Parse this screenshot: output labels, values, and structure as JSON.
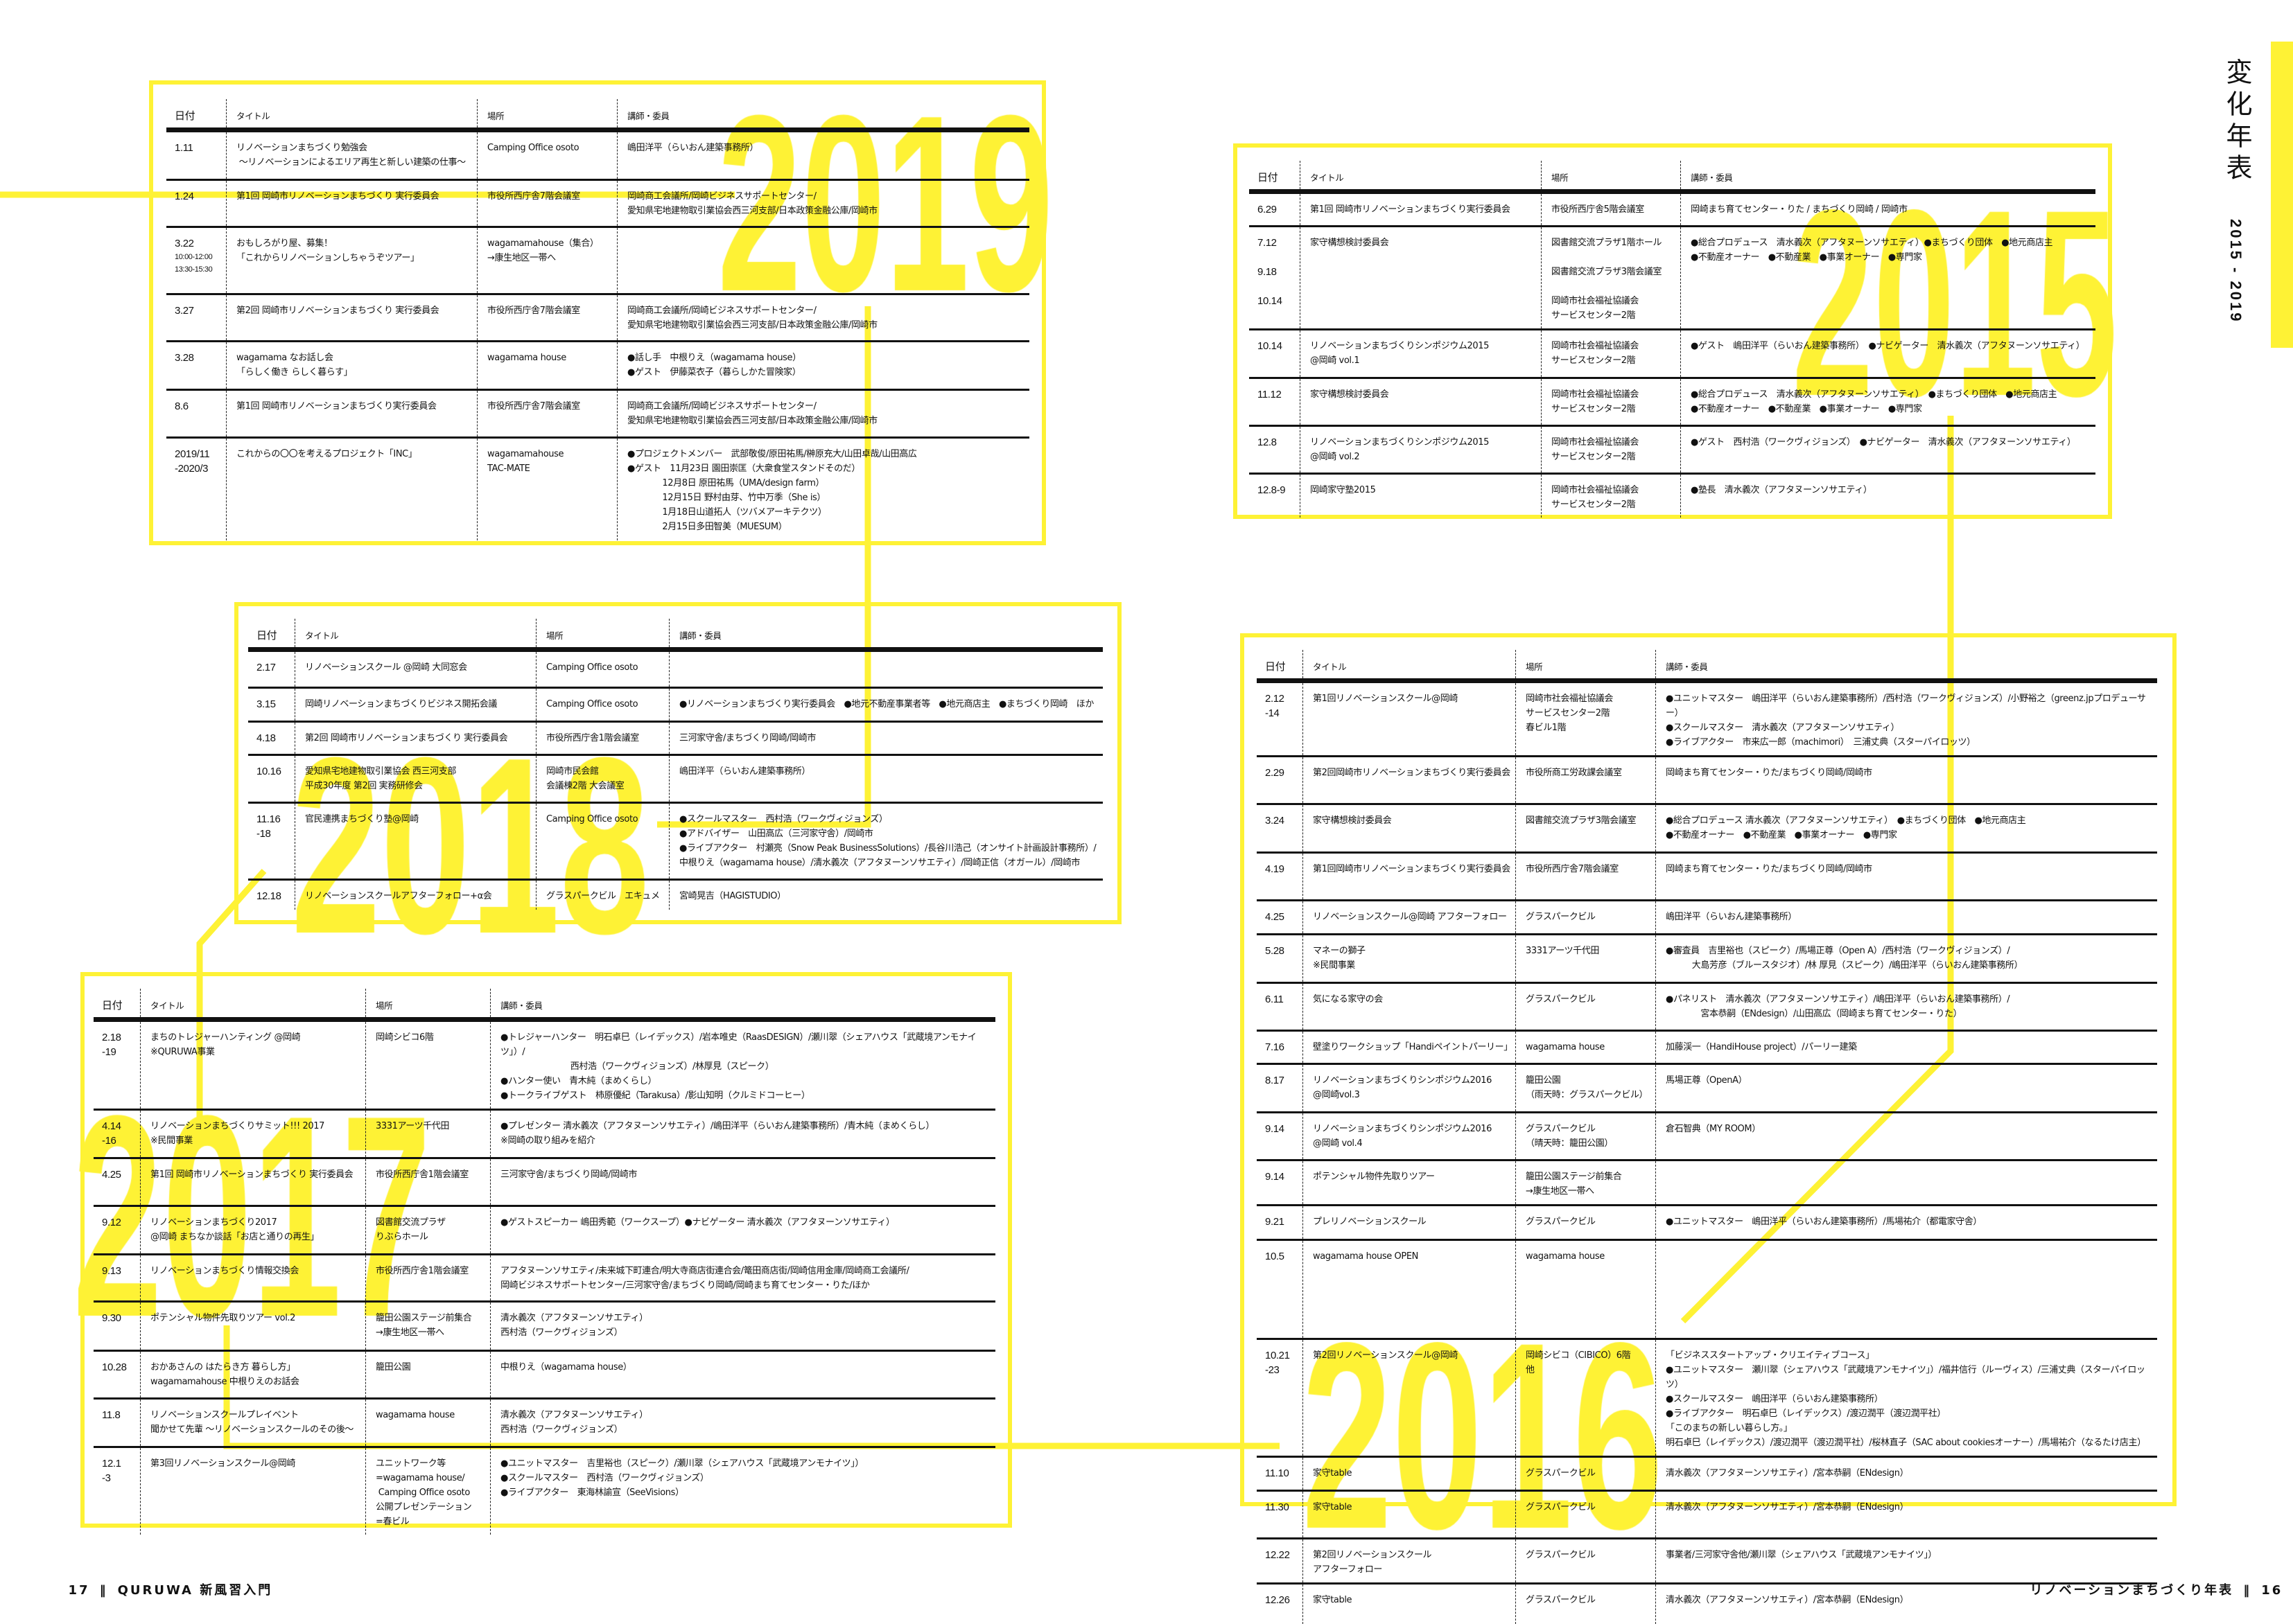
{
  "colors": {
    "accent": "#fef235",
    "text": "#111111"
  },
  "side_title": {
    "title": "変化年表",
    "years": "2015 - 2019"
  },
  "footer": {
    "left_page": "17",
    "left_sep": "‖",
    "left_title": "QURUWA 新風習入門",
    "right_title": "リノベーションまちづくり年表",
    "right_sep": "‖",
    "right_page": "16"
  },
  "headers": {
    "date": "日付",
    "title": "タイトル",
    "place": "場所",
    "people": "講師・委員"
  },
  "tables": {
    "y2019": {
      "year": "2019",
      "rows": [
        {
          "date": "1.11",
          "title": "リノベーションまちづくり勉強会\n 〜リノベーションによるエリア再生と新しい建築の仕事〜",
          "place": "Camping Office osoto",
          "people": "嶋田洋平（らいおん建築事務所）"
        },
        {
          "date": "1.24",
          "title": "第1回 岡崎市リノベーションまちづくり 実行委員会",
          "place": "市役所西庁舎7階会議室",
          "people": "岡崎商工会議所/岡崎ビジネスサポートセンター/\n愛知県宅地建物取引業協会西三河支部/日本政策金融公庫/岡崎市"
        },
        {
          "date": "3.22",
          "date_sub": "10:00-12:00\n13:30-15:30",
          "title": "おもしろがり屋、募集！\n「これからリノベーションしちゃうぞツアー」",
          "place": "wagamamahouse（集合）\n→康生地区一帯へ",
          "people": ""
        },
        {
          "date": "3.27",
          "title": "第2回 岡崎市リノベーションまちづくり 実行委員会",
          "place": "市役所西庁舎7階会議室",
          "people": "岡崎商工会議所/岡崎ビジネスサポートセンター/\n愛知県宅地建物取引業協会西三河支部/日本政策金融公庫/岡崎市"
        },
        {
          "date": "3.28",
          "title": "wagamama なお話し会\n「らしく働き らしく暮らす」",
          "place": "wagamama house",
          "people": "●話し手　中根りえ（wagamama house）\n●ゲスト　伊藤菜衣子（暮らしかた冒険家）"
        },
        {
          "date": "8.6",
          "title": "第1回 岡崎市リノベーションまちづくり実行委員会",
          "place": "市役所西庁舎7階会議室",
          "people": "岡崎商工会議所/岡崎ビジネスサポートセンター/\n愛知県宅地建物取引業協会西三河支部/日本政策金融公庫/岡崎市"
        },
        {
          "date": "2019/11\n-2020/3",
          "title": "これからの〇〇を考えるプロジェクト「INC」",
          "place": "wagamamahouse\nTAC-MATE",
          "people": "●プロジェクトメンバー　武部敬俊/原田祐馬/榊原充大/山田卓哉/山田高広\n●ゲスト　11月23日 園田崇匡（大衆食堂スタンドそのだ）\n　　　　12月8日 原田祐馬（UMA/design farm）\n　　　　12月15日 野村由芽、竹中万季（She is）\n　　　　1月18日山道拓人（ツバメアーキテクツ）\n　　　　2月15日多田智美（MUESUM）"
        }
      ]
    },
    "y2018": {
      "year": "2018",
      "rows": [
        {
          "date": "2.17",
          "title": "リノベーションスクール @岡崎 大同窓会",
          "place": "Camping Office osoto",
          "people": ""
        },
        {
          "date": "3.15",
          "title": "岡崎リノベーションまちづくりビジネス開拓会議",
          "place": "Camping Office osoto",
          "people": "●リノベーションまちづくり実行委員会　●地元不動産事業者等　●地元商店主　●まちづくり岡崎　ほか"
        },
        {
          "date": "4.18",
          "title": "第2回 岡崎市リノベーションまちづくり 実行委員会",
          "place": "市役所西庁舎1階会議室",
          "people": "三河家守舎/まちづくり岡崎/岡崎市"
        },
        {
          "date": "10.16",
          "title": "愛知県宅地建物取引業協会 西三河支部\n平成30年度 第2回 実務研修会",
          "place": "岡崎市民会館\n会議棟2階 大会議室",
          "people": "嶋田洋平（らいおん建築事務所）"
        },
        {
          "date": "11.16\n-18",
          "title": "官民連携まちづくり塾@岡崎",
          "place": "Camping Office osoto",
          "people": "●スクールマスター　西村浩（ワークヴィジョンズ）\n●アドバイザー　山田高広（三河家守舎）/岡崎市\n●ライブアクター　村瀬亮（Snow Peak BusinessSolutions）/長谷川浩己（オンサイト計画設計事務所）/\n中根りえ（wagamama house）/清水義次（アフタヌーンソサエティ）/岡崎正信（オガール）/岡崎市"
        },
        {
          "date": "12.18",
          "title": "リノベーションスクールアフターフォロー+α会",
          "place": "グラスパークビル　エキュメ",
          "people": "宮崎晃吉（HAGISTUDIO）"
        }
      ]
    },
    "y2017": {
      "year": "2017",
      "rows": [
        {
          "date": "2.18\n-19",
          "title": "まちのトレジャーハンティング @岡崎\n※QURUWA事業",
          "place": "岡崎シビコ6階",
          "people": "●トレジャーハンター　明石卓巳（レイデックス）/岩本唯史（RaasDESIGN）/瀬川翠（シェアハウス「武蔵境アンモナイツ」）/\n　　　　　　　　西村浩（ワークヴィジョンズ）/林厚見（スピーク）\n●ハンター使い　青木純（まめくらし）\n●トークライブゲスト　柿原優紀（Tarakusa）/影山知明（クルミドコーヒー）"
        },
        {
          "date": "4.14\n-16",
          "title": "リノベーションまちづくりサミット!!! 2017\n※民間事業",
          "place": "3331アーツ千代田",
          "people": "●プレゼンター 清水義次（アフタヌーンソサエティ）/嶋田洋平（らいおん建築事務所）/青木純（まめくらし）\n※岡崎の取り組みを紹介"
        },
        {
          "date": "4.25",
          "title": "第1回 岡崎市リノベーションまちづくり 実行委員会",
          "place": "市役所西庁舎1階会議室",
          "people": "三河家守舎/まちづくり岡崎/岡崎市"
        },
        {
          "date": "9.12",
          "title": "リノベーションまちづくり2017\n@岡崎 まちなか談話「お店と通りの再生」",
          "place": "図書館交流プラザ\nりぶらホール",
          "people": "●ゲストスピーカー 嶋田秀範（ワークスープ）●ナビゲーター 清水義次（アフタヌーンソサエティ）"
        },
        {
          "date": "9.13",
          "title": "リノベーションまちづくり情報交換会",
          "place": "市役所西庁舎1階会議室",
          "people": "アフタヌーンソサエティ/未来城下町連合/明大寺商店街連合会/篭田商店街/岡崎信用金庫/岡崎商工会議所/\n岡崎ビジネスサポートセンター/三河家守舎/まちづくり岡崎/岡崎まち育てセンター・りた/ほか"
        },
        {
          "date": "9.30",
          "title": "ポテンシャル物件先取りツアー vol.2",
          "place": "籠田公園ステージ前集合\n→康生地区一帯へ",
          "people": "清水義次（アフタヌーンソサエティ）\n西村浩（ワークヴィジョンズ）"
        },
        {
          "date": "10.28",
          "title": "おかあさんの はたらき方 暮らし方」\nwagamamahouse 中根りえのお話会",
          "place": "籠田公園",
          "people": "中根りえ（wagamama house）"
        },
        {
          "date": "11.8",
          "title": "リノベーションスクールプレイベント\n聞かせて先輩 〜リノベーションスクールのその後〜",
          "place": "wagamama house",
          "people": "清水義次（アフタヌーンソサエティ）\n西村浩（ワークヴィジョンズ）"
        },
        {
          "date": "12.1\n-3",
          "title": "第3回リノベーションスクール@岡崎",
          "place": "ユニットワーク等\n=wagamama house/\n Camping Office osoto\n公開プレゼンテーション\n=春ビル",
          "people": "●ユニットマスター　吉里裕也（スピーク）/瀬川翠（シェアハウス「武蔵境アンモナイツ」）\n●スクールマスター　西村浩（ワークヴィジョンズ）\n●ライブアクター　東海林諭宣（SeeVisions）"
        }
      ]
    },
    "y2015": {
      "year": "2015",
      "rows": [
        {
          "date": "6.29",
          "title": "第1回 岡崎市リノベーションまちづくり実行委員会",
          "place": "市役所西庁舎5階会議室",
          "people": "岡崎まち育てセンター・りた / まちづくり岡崎 / 岡崎市"
        },
        {
          "date": "7.12\n\n9.18\n\n10.14",
          "title": "家守構想検討委員会",
          "place": "図書館交流プラザ1階ホール\n\n図書館交流プラザ3階会議室\n\n岡崎市社会福祉協議会\nサービスセンター2階",
          "people": "●総合プロデュース　清水義次（アフタヌーンソサエティ）●まちづくり団体　●地元商店主\n●不動産オーナー　●不動産業　●事業オーナー　●専門家"
        },
        {
          "date": "10.14",
          "title": "リノベーションまちづくりシンポジウム2015\n@岡崎 vol.1",
          "place": "岡崎市社会福祉協議会\nサービスセンター2階",
          "people": "●ゲスト　嶋田洋平（らいおん建築事務所）　●ナビゲーター　清水義次（アフタヌーンソサエティ）"
        },
        {
          "date": "11.12",
          "title": "家守構想検討委員会",
          "place": "岡崎市社会福祉協議会\nサービスセンター2階",
          "people": "●総合プロデュース　清水義次（アフタヌーンソサエティ）　●まちづくり団体　●地元商店主\n●不動産オーナー　●不動産業　●事業オーナー　●専門家"
        },
        {
          "date": "12.8",
          "title": "リノベーションまちづくりシンポジウム2015\n@岡崎 vol.2",
          "place": "岡崎市社会福祉協議会\nサービスセンター2階",
          "people": "●ゲスト　西村浩（ワークヴィジョンズ）　●ナビゲーター　清水義次（アフタヌーンソサエティ）"
        },
        {
          "date": "12.8-9",
          "title": "岡崎家守塾2015",
          "place": "岡崎市社会福祉協議会\nサービスセンター2階",
          "people": "●塾長　清水義次（アフタヌーンソサエティ）"
        }
      ]
    },
    "y2016": {
      "year": "2016",
      "rows": [
        {
          "date": "2.12\n-14",
          "title": "第1回リノベーションスクール@岡崎",
          "place": "岡崎市社会福祉協議会\nサービスセンター2階\n春ビル1階",
          "people": "●ユニットマスター　嶋田洋平（らいおん建築事務所）/西村浩（ワークヴィジョンズ）/小野裕之（greenz.jpプロデューサー）\n●スクールマスター　清水義次（アフタヌーンソサエティ）\n●ライブアクター　市来広一郎（machimori）　三浦丈典（スターパイロッツ）"
        },
        {
          "date": "2.29",
          "title": "第2回岡崎市リノベーションまちづくり実行委員会",
          "place": "市役所商工労政課会議室",
          "people": "岡崎まち育てセンター・りた/まちづくり岡崎/岡崎市"
        },
        {
          "date": "3.24",
          "title": "家守構想検討委員会",
          "place": "図書館交流プラザ3階会議室",
          "people": "●総合プロデュース 清水義次（アフタヌーンソサエティ）　●まちづくり団体　●地元商店主\n●不動産オーナー　●不動産業　●事業オーナー　●専門家"
        },
        {
          "date": "4.19",
          "title": "第1回岡崎市リノベーションまちづくり実行委員会",
          "place": "市役所西庁舎7階会議室",
          "people": "岡崎まち育てセンター・りた/まちづくり岡崎/岡崎市"
        },
        {
          "date": "4.25",
          "title": "リノベーションスクール@岡崎 アフターフォロー",
          "place": "グラスパークビル",
          "people": "嶋田洋平（らいおん建築事務所）"
        },
        {
          "date": "5.28",
          "title": "マネーの獅子\n※民間事業",
          "place": "3331アーツ千代田",
          "people": "●審査員　吉里裕也（スピーク）/馬場正尊（Open A）/西村浩（ワークヴィジョンズ）/\n　　　大島芳彦（ブルースタジオ）/林 厚見（スピーク）/嶋田洋平（らいおん建築事務所）"
        },
        {
          "date": "6.11",
          "title": "気になる家守の会",
          "place": "グラスパークビル",
          "people": "●パネリスト　清水義次（アフタヌーンソサエティ）/嶋田洋平（らいおん建築事務所）/\n　　　　宮本恭嗣（ENdesign）/山田高広（岡崎まち育てセンター・りた）"
        },
        {
          "date": "7.16",
          "title": "壁塗りワークショップ「Handiペイントパーリー」",
          "place": "wagamama house",
          "people": "加藤渓一（HandiHouse project）/パーリー建築"
        },
        {
          "date": "8.17",
          "title": "リノベーションまちづくりシンポジウム2016\n@岡崎vol.3",
          "place": "籠田公園\n（雨天時：グラスパークビル）",
          "people": "馬場正尊（OpenA）"
        },
        {
          "date": "9.14",
          "title": "リノベーションまちづくりシンポジウム2016\n@岡崎 vol.4",
          "place": "グラスパークビル\n（晴天時：籠田公園）",
          "people": "倉石智典（MY ROOM）"
        },
        {
          "date": "9.14",
          "title": "ポテンシャル物件先取りツアー",
          "place": "籠田公園ステージ前集合\n→康生地区一帯へ",
          "people": ""
        },
        {
          "date": "9.21",
          "title": "プレリノベーションスクール",
          "place": "グラスパークビル",
          "people": "●ユニットマスター　嶋田洋平（らいおん建築事務所）/馬場祐介（都電家守舎）"
        },
        {
          "date": "10.5",
          "title": "wagamama house OPEN",
          "place": "wagamama house",
          "people": ""
        },
        {
          "date": "10.21\n-23",
          "title": "第2回リノベーションスクール@岡崎",
          "place": "岡崎シビコ（CIBICO）6階\n他",
          "people": "「ビジネススタートアップ・クリエイティブコース」\n●ユニットマスター　瀬川翠（シェアハウス「武蔵境アンモナイツ」）/福井信行（ルーヴィス）/三浦丈典（スターパイロッツ）\n●スクールマスター　嶋田洋平（らいおん建築事務所）\n●ライブアクター　明石卓巳（レイデックス）/渡辺潤平（渡辺潤平社）\n「このまちの新しい暮らし方。」\n明石卓巳（レイデックス）/渡辺潤平（渡辺潤平社）/桜林直子（SAC about cookiesオーナー）/馬場祐介（なるたけ店主）"
        },
        {
          "date": "11.10",
          "title": "家守table",
          "place": "グラスパークビル",
          "people": "清水義次（アフタヌーンソサエティ）/宮本恭嗣（ENdesign）"
        },
        {
          "date": "11.30",
          "title": "家守table",
          "place": "グラスパークビル",
          "people": "清水義次（アフタヌーンソサエティ）/宮本恭嗣（ENdesign）"
        },
        {
          "date": "12.22",
          "title": "第2回リノベーションスクール\nアフターフォロー",
          "place": "グラスパークビル",
          "people": "事業者/三河家守舎他/瀬川翠（シェアハウス「武蔵境アンモナイツ」）"
        },
        {
          "date": "12.26",
          "title": "家守table",
          "place": "グラスパークビル",
          "people": "清水義次（アフタヌーンソサエティ）/宮本恭嗣（ENdesign）"
        }
      ]
    }
  }
}
